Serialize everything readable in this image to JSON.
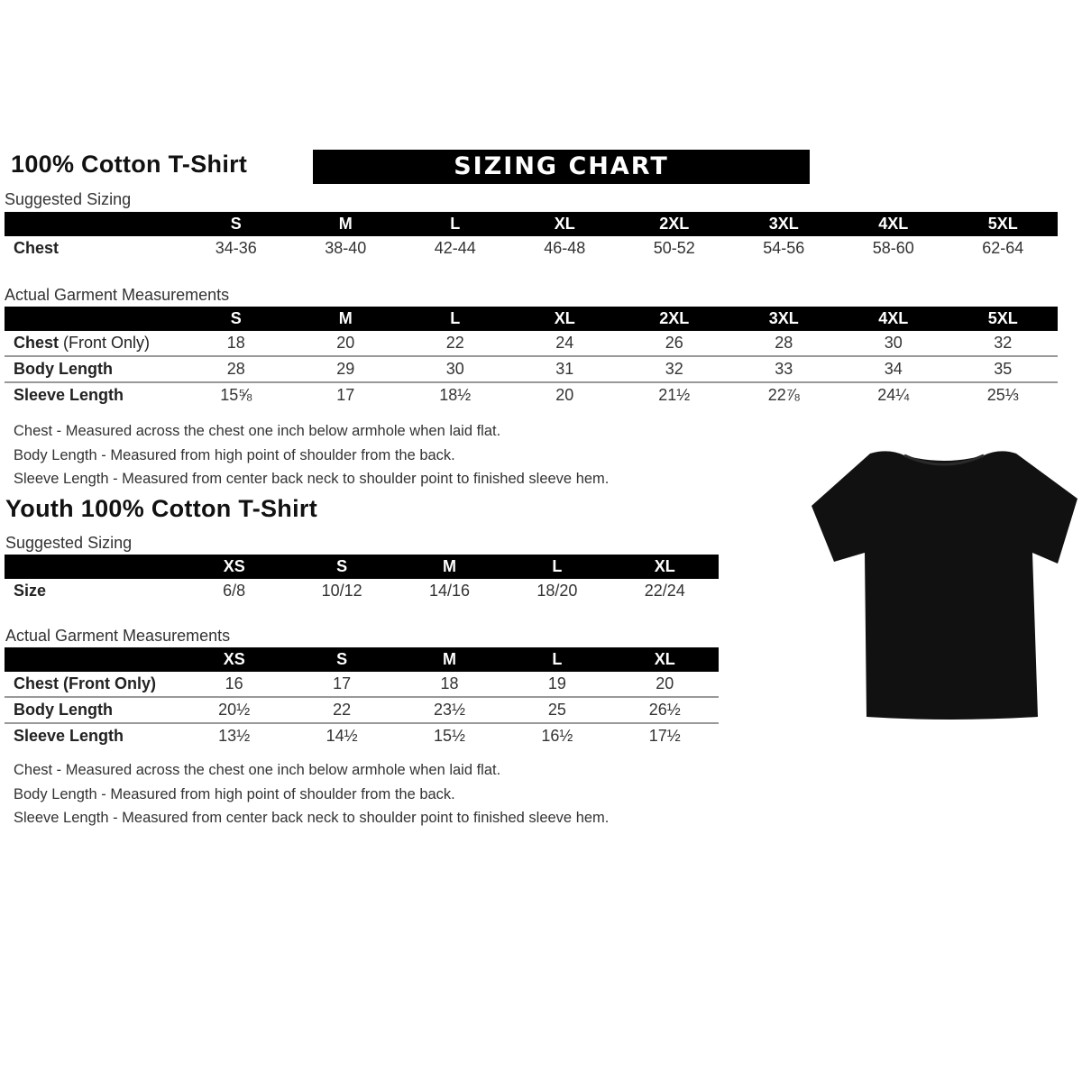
{
  "adult": {
    "title": "100% Cotton T-Shirt",
    "banner": "SIZING CHART",
    "suggested": {
      "label": "Suggested Sizing",
      "sizes": [
        "S",
        "M",
        "L",
        "XL",
        "2XL",
        "3XL",
        "4XL",
        "5XL"
      ],
      "rows": [
        {
          "label": "Chest",
          "values": [
            "34-36",
            "38-40",
            "42-44",
            "46-48",
            "50-52",
            "54-56",
            "58-60",
            "62-64"
          ]
        }
      ]
    },
    "actual": {
      "label": "Actual Garment Measurements",
      "sizes": [
        "S",
        "M",
        "L",
        "XL",
        "2XL",
        "3XL",
        "4XL",
        "5XL"
      ],
      "rows": [
        {
          "label": "Chest",
          "label_extra": "(Front Only)",
          "values": [
            "18",
            "20",
            "22",
            "24",
            "26",
            "28",
            "30",
            "32"
          ]
        },
        {
          "label": "Body Length",
          "values": [
            "28",
            "29",
            "30",
            "31",
            "32",
            "33",
            "34",
            "35"
          ]
        },
        {
          "label": "Sleeve Length",
          "values": [
            "15⅝",
            "17",
            "18½",
            "20",
            "21½",
            "22⅞",
            "24¼",
            "25⅓"
          ]
        }
      ]
    },
    "notes": [
      "Chest - Measured across the chest one inch below armhole when laid flat.",
      "Body Length - Measured from high point of shoulder from the back.",
      "Sleeve Length - Measured from center back neck to shoulder point to finished sleeve hem."
    ]
  },
  "youth": {
    "title": "Youth 100% Cotton T-Shirt",
    "suggested": {
      "label": "Suggested Sizing",
      "sizes": [
        "XS",
        "S",
        "M",
        "L",
        "XL"
      ],
      "rows": [
        {
          "label": "Size",
          "values": [
            "6/8",
            "10/12",
            "14/16",
            "18/20",
            "22/24"
          ]
        }
      ]
    },
    "actual": {
      "label": "Actual Garment Measurements",
      "sizes": [
        "XS",
        "S",
        "M",
        "L",
        "XL"
      ],
      "rows": [
        {
          "label": "Chest (Front Only)",
          "values": [
            "16",
            "17",
            "18",
            "19",
            "20"
          ]
        },
        {
          "label": "Body Length",
          "values": [
            "20½",
            "22",
            "23½",
            "25",
            "26½"
          ]
        },
        {
          "label": "Sleeve Length",
          "values": [
            "13½",
            "14½",
            "15½",
            "16½",
            "17½"
          ]
        }
      ]
    },
    "notes": [
      "Chest - Measured across the chest one inch below armhole when laid flat.",
      "Body Length - Measured from high point of shoulder from the back.",
      "Sleeve Length - Measured from center back neck to shoulder point to finished sleeve hem."
    ]
  },
  "colors": {
    "header_bg": "#000000",
    "shirt": "#111111",
    "divider": "#999999"
  }
}
